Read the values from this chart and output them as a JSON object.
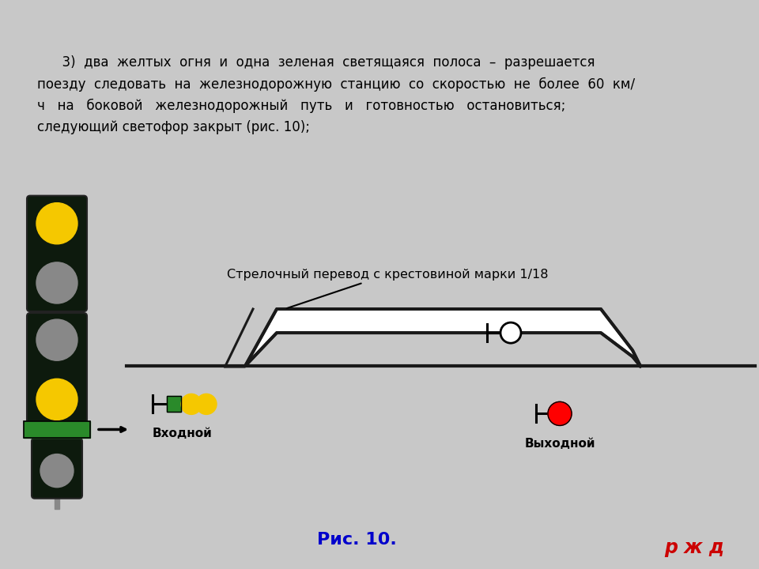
{
  "bg_top": "#c8c8c8",
  "bg_bottom": "#e8e8e8",
  "text_box_bg": "#f5f5d8",
  "text_box_border": "#aaaaaa",
  "main_text_line1": "      3)  два  желтых  огня  и  одна  зеленая  светящаяся  полоса  –  разрешается",
  "main_text_line2": "поезду  следовать  на  железнодорожную  станцию  со  скоростью  не  более  60  км/",
  "main_text_line3": "ч   на   боковой   железнодорожный   путь   и   готовностью   остановиться;",
  "main_text_line4": "следующий светофор закрыт (рис. 10);",
  "caption": "Рис. 10.",
  "caption_color": "#0000cc",
  "switch_label": "Стрелочный перевод с крестовиной марки 1/18",
  "vkh_label": "Входной",
  "vykh_label": "Выходной",
  "tl_housing_color": "#0d1a0d",
  "tl_yellow": "#f5c800",
  "tl_gray": "#888888",
  "tl_green_stripe": "#2a8a2a",
  "post_color": "#888888",
  "track_color": "#1a1a1a",
  "rjd_text": "ржд",
  "rjd_color": "#cc0000"
}
